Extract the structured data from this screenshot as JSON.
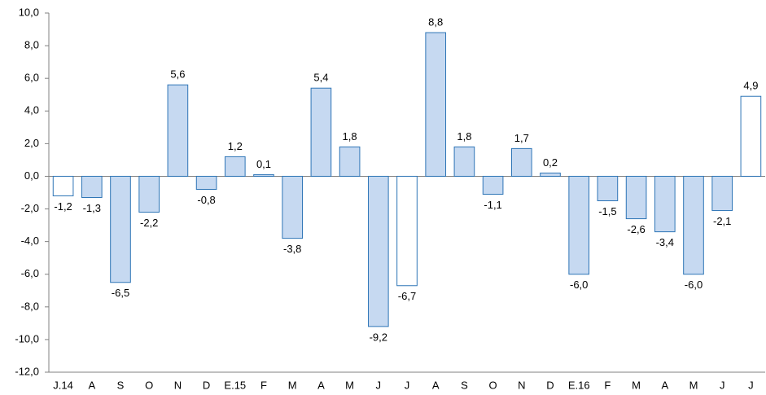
{
  "chart_data": {
    "type": "bar",
    "categories": [
      "J.14",
      "A",
      "S",
      "O",
      "N",
      "D",
      "E.15",
      "F",
      "M",
      "A",
      "M",
      "J",
      "J",
      "A",
      "S",
      "O",
      "N",
      "D",
      "E.16",
      "F",
      "M",
      "A",
      "M",
      "J",
      "J"
    ],
    "values": [
      -1.2,
      -1.3,
      -6.5,
      -2.2,
      5.6,
      -0.8,
      1.2,
      0.1,
      -3.8,
      5.4,
      1.8,
      -9.2,
      -6.7,
      8.8,
      1.8,
      -1.1,
      1.7,
      0.2,
      -6.0,
      -1.5,
      -2.6,
      -3.4,
      -6.0,
      -2.1,
      4.9
    ],
    "value_labels": [
      "-1,2",
      "-1,3",
      "-6,5",
      "-2,2",
      "5,6",
      "-0,8",
      "1,2",
      "0,1",
      "-3,8",
      "5,4",
      "1,8",
      "-9,2",
      "-6,7",
      "8,8",
      "1,8",
      "-1,1",
      "1,7",
      "0,2",
      "-6,0",
      "-1,5",
      "-2,6",
      "-3,4",
      "-6,0",
      "-2,1",
      "4,9"
    ],
    "colors": [
      "#ffffff",
      "#c6d9f1",
      "#c6d9f1",
      "#c6d9f1",
      "#c6d9f1",
      "#c6d9f1",
      "#c6d9f1",
      "#c6d9f1",
      "#c6d9f1",
      "#c6d9f1",
      "#c6d9f1",
      "#c6d9f1",
      "#ffffff",
      "#c6d9f1",
      "#c6d9f1",
      "#c6d9f1",
      "#c6d9f1",
      "#c6d9f1",
      "#c6d9f1",
      "#c6d9f1",
      "#c6d9f1",
      "#c6d9f1",
      "#c6d9f1",
      "#c6d9f1",
      "#ffffff"
    ],
    "edge_color": "#2e75b6",
    "ylim": [
      -12,
      10
    ],
    "yticks": [
      {
        "value": -12,
        "label": "-12,0"
      },
      {
        "value": -10,
        "label": "-10,0"
      },
      {
        "value": -8,
        "label": "-8,0"
      },
      {
        "value": -6,
        "label": "-6,0"
      },
      {
        "value": -4,
        "label": "-4,0"
      },
      {
        "value": -2,
        "label": "-2,0"
      },
      {
        "value": 0,
        "label": "0,0"
      },
      {
        "value": 2,
        "label": "2,0"
      },
      {
        "value": 4,
        "label": "4,0"
      },
      {
        "value": 6,
        "label": "6,0"
      },
      {
        "value": 8,
        "label": "8,0"
      },
      {
        "value": 10,
        "label": "10,0"
      }
    ],
    "grid": false
  }
}
